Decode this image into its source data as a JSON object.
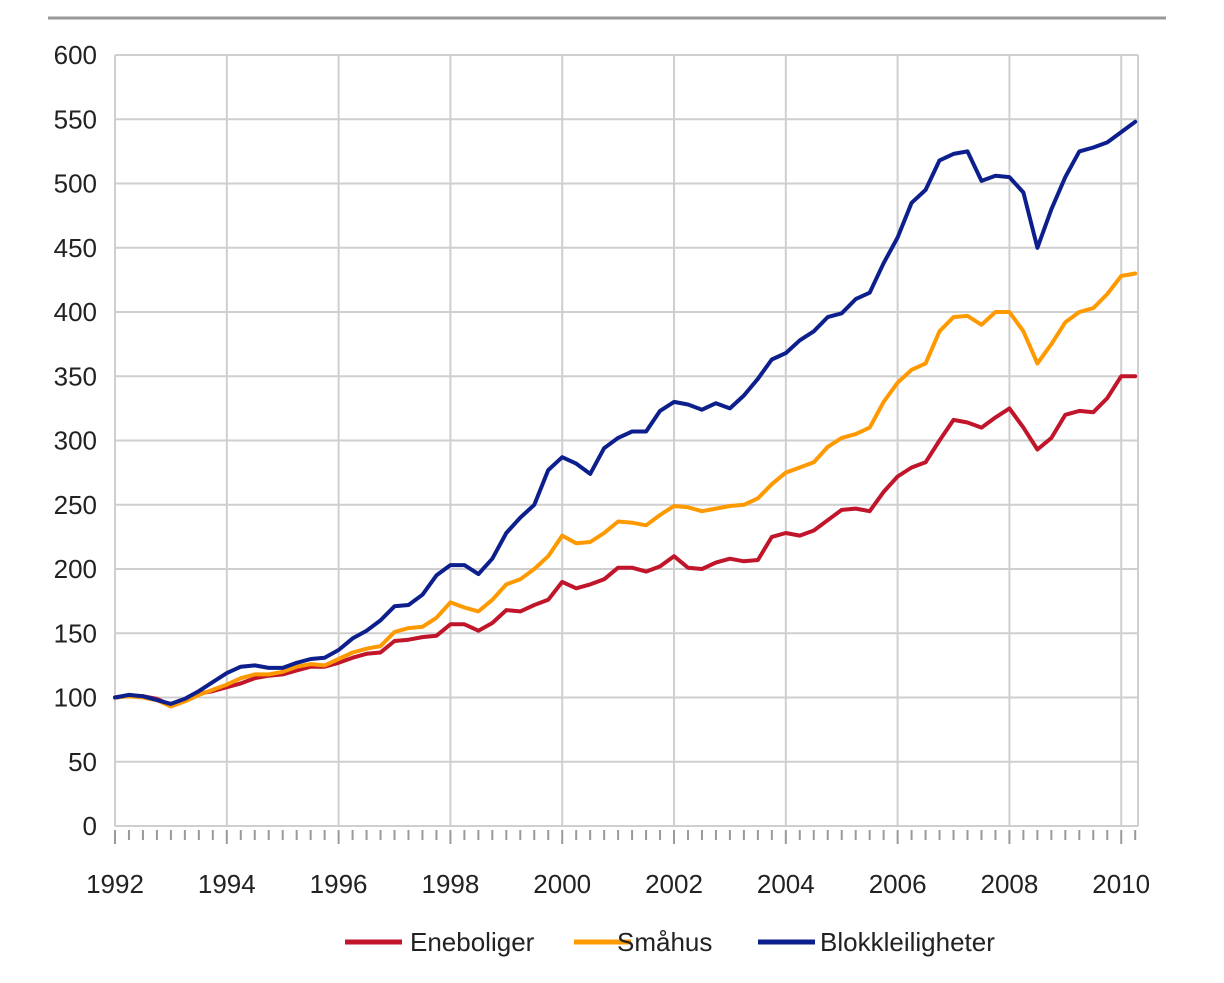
{
  "chart_data": {
    "type": "line",
    "title": "",
    "xlabel": "",
    "ylabel": "",
    "xlim": [
      1992,
      2010.3
    ],
    "ylim": [
      0,
      600
    ],
    "y_ticks": [
      0,
      50,
      100,
      150,
      200,
      250,
      300,
      350,
      400,
      450,
      500,
      550,
      600
    ],
    "x_ticks": [
      1992,
      1994,
      1996,
      1998,
      2000,
      2002,
      2004,
      2006,
      2008,
      2010
    ],
    "x_tick_labels": [
      "1992",
      "1994",
      "1996",
      "1998",
      "2000",
      "2002",
      "2004",
      "2006",
      "2008",
      "2010"
    ],
    "grid": true,
    "legend_position": "bottom-center",
    "series": [
      {
        "name": "Eneboliger",
        "color": "#c0152a",
        "x": [
          1992,
          1992.25,
          1992.5,
          1992.75,
          1993,
          1993.25,
          1993.5,
          1993.75,
          1994,
          1994.25,
          1994.5,
          1994.75,
          1995,
          1995.25,
          1995.5,
          1995.75,
          1996,
          1996.25,
          1996.5,
          1996.75,
          1997,
          1997.25,
          1997.5,
          1997.75,
          1998,
          1998.25,
          1998.5,
          1998.75,
          1999,
          1999.25,
          1999.5,
          1999.75,
          2000,
          2000.25,
          2000.5,
          2000.75,
          2001,
          2001.25,
          2001.5,
          2001.75,
          2002,
          2002.25,
          2002.5,
          2002.75,
          2003,
          2003.25,
          2003.5,
          2003.75,
          2004,
          2004.25,
          2004.5,
          2004.75,
          2005,
          2005.25,
          2005.5,
          2005.75,
          2006,
          2006.25,
          2006.5,
          2006.75,
          2007,
          2007.25,
          2007.5,
          2007.75,
          2008,
          2008.25,
          2008.5,
          2008.75,
          2009,
          2009.25,
          2009.5,
          2009.75,
          2010,
          2010.25
        ],
        "values": [
          100,
          101,
          101,
          99,
          94,
          98,
          103,
          105,
          108,
          111,
          115,
          117,
          118,
          121,
          124,
          124,
          127,
          131,
          134,
          135,
          144,
          145,
          147,
          148,
          157,
          157,
          152,
          158,
          168,
          167,
          172,
          176,
          190,
          185,
          188,
          192,
          201,
          201,
          198,
          202,
          210,
          201,
          200,
          205,
          208,
          206,
          207,
          225,
          228,
          226,
          230,
          238,
          246,
          247,
          245,
          260,
          272,
          279,
          283,
          300,
          316,
          314,
          310,
          318,
          325,
          310,
          293,
          302,
          320,
          323,
          322,
          333,
          350,
          350
        ]
      },
      {
        "name": "Småhus",
        "color": "#ff9900",
        "x": [
          1992,
          1992.25,
          1992.5,
          1992.75,
          1993,
          1993.25,
          1993.5,
          1993.75,
          1994,
          1994.25,
          1994.5,
          1994.75,
          1995,
          1995.25,
          1995.5,
          1995.75,
          1996,
          1996.25,
          1996.5,
          1996.75,
          1997,
          1997.25,
          1997.5,
          1997.75,
          1998,
          1998.25,
          1998.5,
          1998.75,
          1999,
          1999.25,
          1999.5,
          1999.75,
          2000,
          2000.25,
          2000.5,
          2000.75,
          2001,
          2001.25,
          2001.5,
          2001.75,
          2002,
          2002.25,
          2002.5,
          2002.75,
          2003,
          2003.25,
          2003.5,
          2003.75,
          2004,
          2004.25,
          2004.5,
          2004.75,
          2005,
          2005.25,
          2005.5,
          2005.75,
          2006,
          2006.25,
          2006.5,
          2006.75,
          2007,
          2007.25,
          2007.5,
          2007.75,
          2008,
          2008.25,
          2008.5,
          2008.75,
          2009,
          2009.25,
          2009.5,
          2009.75,
          2010,
          2010.25
        ],
        "values": [
          100,
          101,
          100,
          98,
          93,
          97,
          102,
          106,
          110,
          115,
          118,
          118,
          120,
          124,
          126,
          125,
          130,
          135,
          138,
          140,
          151,
          154,
          155,
          162,
          174,
          170,
          167,
          176,
          188,
          192,
          200,
          210,
          226,
          220,
          221,
          228,
          237,
          236,
          234,
          242,
          249,
          248,
          245,
          247,
          249,
          250,
          255,
          266,
          275,
          279,
          283,
          295,
          302,
          305,
          310,
          330,
          345,
          355,
          360,
          385,
          396,
          397,
          390,
          400,
          400,
          385,
          360,
          375,
          392,
          400,
          403,
          414,
          428,
          430
        ]
      },
      {
        "name": "Blokkleiligheter",
        "color": "#0d1f8c",
        "x": [
          1992,
          1992.25,
          1992.5,
          1992.75,
          1993,
          1993.25,
          1993.5,
          1993.75,
          1994,
          1994.25,
          1994.5,
          1994.75,
          1995,
          1995.25,
          1995.5,
          1995.75,
          1996,
          1996.25,
          1996.5,
          1996.75,
          1997,
          1997.25,
          1997.5,
          1997.75,
          1998,
          1998.25,
          1998.5,
          1998.75,
          1999,
          1999.25,
          1999.5,
          1999.75,
          2000,
          2000.25,
          2000.5,
          2000.75,
          2001,
          2001.25,
          2001.5,
          2001.75,
          2002,
          2002.25,
          2002.5,
          2002.75,
          2003,
          2003.25,
          2003.5,
          2003.75,
          2004,
          2004.25,
          2004.5,
          2004.75,
          2005,
          2005.25,
          2005.5,
          2005.75,
          2006,
          2006.25,
          2006.5,
          2006.75,
          2007,
          2007.25,
          2007.5,
          2007.75,
          2008,
          2008.25,
          2008.5,
          2008.75,
          2009,
          2009.25,
          2009.5,
          2009.75,
          2010,
          2010.25
        ],
        "values": [
          100,
          102,
          101,
          98,
          95,
          99,
          105,
          112,
          119,
          124,
          125,
          123,
          123,
          127,
          130,
          131,
          137,
          146,
          152,
          160,
          171,
          172,
          180,
          195,
          203,
          203,
          196,
          208,
          228,
          240,
          250,
          277,
          287,
          282,
          274,
          294,
          302,
          307,
          307,
          323,
          330,
          328,
          324,
          329,
          325,
          335,
          348,
          363,
          368,
          378,
          385,
          396,
          399,
          410,
          415,
          438,
          458,
          485,
          495,
          518,
          523,
          525,
          502,
          506,
          505,
          493,
          450,
          480,
          505,
          525,
          528,
          532,
          540,
          548
        ]
      }
    ]
  }
}
